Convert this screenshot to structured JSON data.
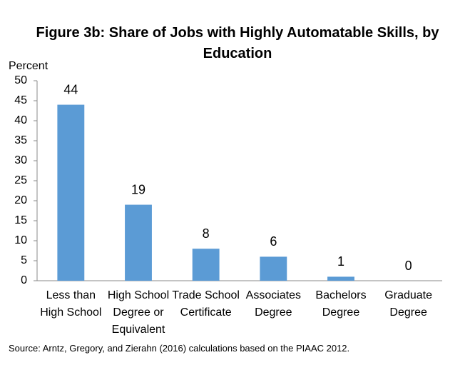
{
  "chart_data": {
    "type": "bar",
    "title": "Figure 3b: Share of Jobs with Highly Automatable Skills, by Education",
    "y_label": "Percent",
    "categories": [
      "Less than High School",
      "High School Degree or Equivalent",
      "Trade School Certificate",
      "Associates Degree",
      "Bachelors Degree",
      "Graduate Degree"
    ],
    "values": [
      44,
      19,
      8,
      6,
      1,
      0
    ],
    "color": "#5b9bd5",
    "ylim": [
      0,
      50
    ],
    "yticks": [
      0,
      5,
      10,
      15,
      20,
      25,
      30,
      35,
      40,
      45,
      50
    ],
    "grid": false,
    "source": "Source: Arntz, Gregory, and Zierahn (2016) calculations based on the PIAAC 2012."
  }
}
